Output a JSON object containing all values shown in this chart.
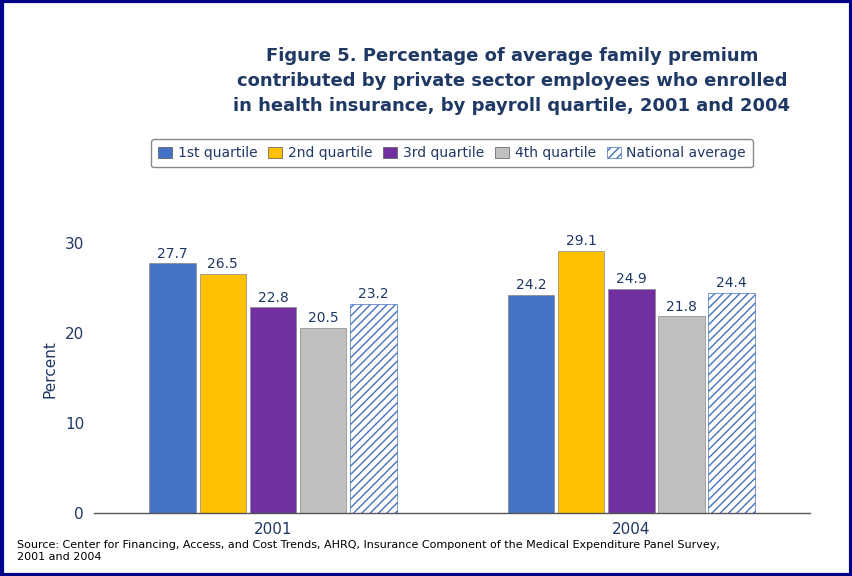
{
  "title": "Figure 5. Percentage of average family premium\ncontributed by private sector employees who enrolled\nin health insurance, by payroll quartile, 2001 and 2004",
  "ylabel": "Percent",
  "years": [
    "2001",
    "2004"
  ],
  "categories": [
    "1st quartile",
    "2nd quartile",
    "3rd quartile",
    "4th quartile",
    "National average"
  ],
  "values_2001": [
    27.7,
    26.5,
    22.8,
    20.5,
    23.2
  ],
  "values_2004": [
    24.2,
    29.1,
    24.9,
    21.8,
    24.4
  ],
  "bar_colors": [
    "#4472C4",
    "#FFC000",
    "#7030A0",
    "#C0C0C0",
    "#FFFFFF"
  ],
  "bar_hatch": [
    null,
    null,
    null,
    null,
    "////"
  ],
  "bar_hatch_edgecolor": [
    "none",
    "none",
    "none",
    "none",
    "#4472C4"
  ],
  "ylim": [
    0,
    32
  ],
  "yticks": [
    0,
    10,
    20,
    30
  ],
  "source_text": "Source: Center for Financing, Access, and Cost Trends, AHRQ, Insurance Component of the Medical Expenditure Panel Survey,\n2001 and 2004",
  "title_color": "#1F3864",
  "label_color": "#1F3864",
  "chart_bg": "#FFFFFF",
  "outer_bg": "#FFFFFF",
  "border_color": "#00008B",
  "header_line_color": "#00008B",
  "title_fontsize": 13,
  "axis_label_fontsize": 11,
  "tick_fontsize": 11,
  "legend_fontsize": 10,
  "value_fontsize": 10,
  "year_label_fontsize": 12
}
